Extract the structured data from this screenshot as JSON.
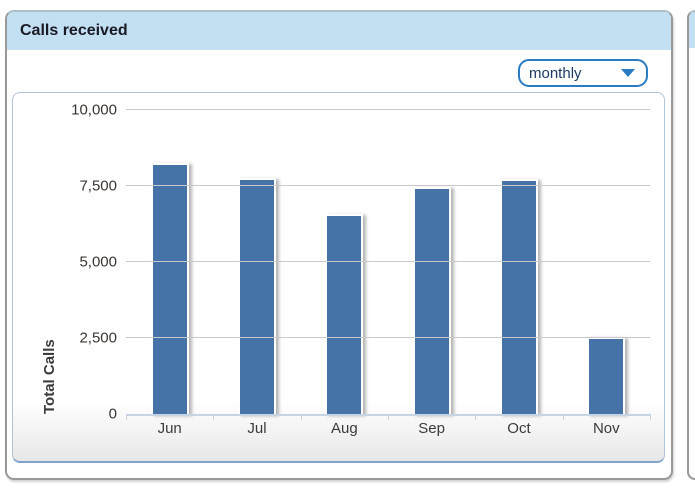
{
  "header": {
    "title": "Calls received"
  },
  "controls": {
    "interval_dropdown": {
      "value": "monthly"
    }
  },
  "chart_data": {
    "type": "bar",
    "categories": [
      "Jun",
      "Jul",
      "Aug",
      "Sep",
      "Oct",
      "Nov"
    ],
    "values": [
      8300,
      7800,
      6600,
      7500,
      7750,
      2550
    ],
    "title": "Calls received",
    "xlabel": "",
    "ylabel": "Total Calls",
    "ylim": [
      0,
      10000
    ],
    "yticks": [
      0,
      2500,
      5000,
      7500,
      10000
    ],
    "ytick_labels": [
      "0",
      "2,500",
      "5,000",
      "7,500",
      "10,000"
    ],
    "grid": true,
    "legend_position": "none",
    "bar_color": "#4573a7"
  },
  "colors": {
    "header_bg": "#c2e0f2",
    "accent_blue": "#2a7cc2",
    "bar": "#4573a7",
    "gridline": "#c9c9c9",
    "axis_line": "#c6d4e3"
  }
}
